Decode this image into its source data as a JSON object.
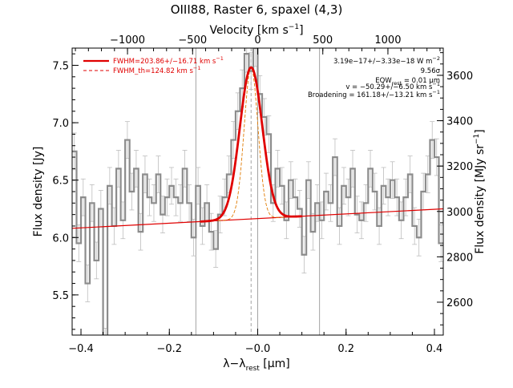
{
  "chart_data": {
    "type": "line",
    "title": "OIII88, Raster 6, spaxel (4,3)",
    "xlabel": "λ−λ",
    "xlabel_sub": "rest",
    "xlabel_unit": "[μm]",
    "ylabel": "Flux density [Jy]",
    "y2label": "Flux density [MJy sr",
    "y2label_sup": "−1",
    "y2label_end": "]",
    "top_axis_label": "Velocity [km s",
    "top_axis_sup": "−1",
    "top_axis_end": "]",
    "xlim": [
      -0.42,
      0.42
    ],
    "ylim": [
      5.15,
      7.65
    ],
    "y2lim": [
      2455,
      3720
    ],
    "x_ticks": [
      -0.4,
      -0.2,
      0.0,
      0.2,
      0.4
    ],
    "x_tick_labels": [
      "−0.4",
      "−0.2",
      "−0.0",
      "0.2",
      "0.4"
    ],
    "y_ticks": [
      5.5,
      6.0,
      6.5,
      7.0,
      7.5
    ],
    "y_tick_labels": [
      "5.5",
      "6.0",
      "6.5",
      "7.0",
      "7.5"
    ],
    "y2_ticks": [
      2600,
      2800,
      3000,
      3200,
      3400,
      3600
    ],
    "y2_tick_labels": [
      "2600",
      "2800",
      "3000",
      "3200",
      "3400",
      "3600"
    ],
    "top_ticks_kms": [
      -1000,
      -500,
      0,
      500,
      1000
    ],
    "top_tick_labels": [
      "−1000",
      "−500",
      "0",
      "500",
      "1000"
    ],
    "top_axis_wavelength_um": 88.356,
    "vertical_lines": [
      -0.14,
      0.14
    ],
    "center_line": 0.0,
    "fit_center_line": -0.015,
    "grid": false,
    "legend_position": "top-left",
    "legend": [
      {
        "label": "FWHM=203.86+/−16.71 km s",
        "sup": "−1",
        "style": "solid",
        "color": "#e00000"
      },
      {
        "label": "FWHM_th=124.82 km s",
        "sup": "−1",
        "style": "dashed",
        "color": "#e00000"
      }
    ],
    "annotations": [
      {
        "text": "3.19e−17+/−3.33e−18 W m",
        "sup": "−2"
      },
      {
        "text": "9.56σ",
        "sup": ""
      },
      {
        "text": "EQW",
        "sub": "rest",
        "text2": " = 0.01 μm",
        "sup": ""
      },
      {
        "text": "v = −50.29+/−6.50 km s",
        "sup": "−1"
      },
      {
        "text": "Broadening = 161.18+/−13.21 km s",
        "sup": "−1"
      }
    ],
    "continuum": {
      "x": [
        -0.42,
        0.42
      ],
      "y": [
        6.08,
        6.25
      ]
    },
    "fit": {
      "amplitude": 1.32,
      "center": -0.015,
      "sigma": 0.0255
    },
    "fit_theoretical": {
      "amplitude": 1.32,
      "center": -0.015,
      "sigma": 0.0156
    },
    "series": [
      {
        "name": "spectrum",
        "x": [
          -0.415,
          -0.405,
          -0.395,
          -0.385,
          -0.375,
          -0.365,
          -0.355,
          -0.345,
          -0.335,
          -0.325,
          -0.315,
          -0.305,
          -0.295,
          -0.285,
          -0.275,
          -0.265,
          -0.255,
          -0.245,
          -0.235,
          -0.225,
          -0.215,
          -0.205,
          -0.195,
          -0.185,
          -0.175,
          -0.165,
          -0.155,
          -0.145,
          -0.135,
          -0.125,
          -0.115,
          -0.105,
          -0.095,
          -0.085,
          -0.075,
          -0.065,
          -0.055,
          -0.045,
          -0.035,
          -0.025,
          -0.015,
          -0.005,
          0.005,
          0.015,
          0.025,
          0.035,
          0.045,
          0.055,
          0.065,
          0.075,
          0.085,
          0.095,
          0.105,
          0.115,
          0.125,
          0.135,
          0.145,
          0.155,
          0.165,
          0.175,
          0.185,
          0.195,
          0.205,
          0.215,
          0.225,
          0.235,
          0.245,
          0.255,
          0.265,
          0.275,
          0.285,
          0.295,
          0.305,
          0.315,
          0.325,
          0.335,
          0.345,
          0.355,
          0.365,
          0.375,
          0.385,
          0.395,
          0.405,
          0.415
        ],
        "y": [
          6.75,
          5.95,
          6.35,
          5.6,
          6.3,
          5.8,
          6.25,
          5.05,
          6.45,
          6.1,
          6.6,
          6.15,
          6.85,
          6.4,
          6.6,
          6.05,
          6.55,
          6.35,
          6.3,
          6.55,
          6.2,
          6.35,
          6.45,
          6.35,
          6.3,
          6.6,
          6.3,
          6.0,
          6.45,
          6.1,
          6.3,
          6.05,
          5.9,
          6.2,
          6.35,
          6.55,
          6.85,
          7.1,
          7.3,
          7.6,
          7.45,
          7.65,
          7.25,
          7.05,
          6.9,
          6.3,
          6.6,
          6.45,
          6.15,
          6.5,
          6.35,
          6.25,
          5.85,
          6.5,
          6.05,
          6.3,
          6.15,
          6.4,
          6.3,
          6.7,
          6.1,
          6.45,
          6.35,
          6.6,
          6.2,
          6.15,
          6.3,
          6.6,
          6.4,
          6.1,
          6.45,
          6.35,
          6.5,
          6.35,
          6.15,
          6.35,
          6.55,
          6.1,
          6.0,
          6.4,
          6.55,
          6.85,
          6.7,
          5.95
        ]
      }
    ]
  }
}
